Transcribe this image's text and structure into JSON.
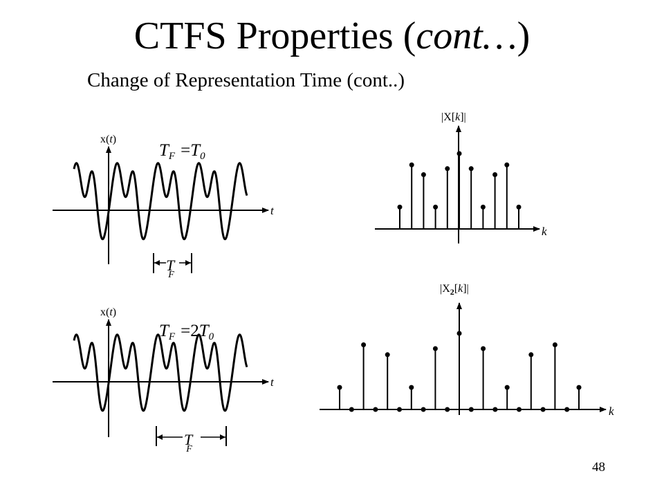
{
  "title": {
    "part1": "CTFS Properties (",
    "emph": "cont…",
    "part2": ")"
  },
  "subtitle": "Change of Representation  Time (cont..)",
  "page_number": "48",
  "time_plots": [
    {
      "ylabel": {
        "x": "x(",
        "t": "t",
        "close": ")"
      },
      "axis_label": "t",
      "equation": {
        "lhs": "T",
        "lhs_sub": "F",
        "eq": "=",
        "coef": "",
        "rhs": "T",
        "rhs_sub": "0"
      },
      "period_label": {
        "main": "T",
        "sub": "F"
      }
    },
    {
      "ylabel": {
        "x": "x(",
        "t": "t",
        "close": ")"
      },
      "axis_label": "t",
      "equation": {
        "lhs": "T",
        "lhs_sub": "F",
        "eq": "=",
        "coef": "2",
        "rhs": "T",
        "rhs_sub": "0"
      },
      "period_label": {
        "main": "T",
        "sub": "F"
      }
    }
  ],
  "spectrum_plots": [
    {
      "ylabel": {
        "open": "|X[",
        "k": "k",
        "close": "]|"
      },
      "axis_label": "k",
      "harmonics": [
        -5,
        -4,
        -3,
        -2,
        -1,
        0,
        1,
        2,
        3,
        4,
        5
      ],
      "magnitudes": [
        0.29,
        0.85,
        0.72,
        0.29,
        0.8,
        1.0,
        0.8,
        0.29,
        0.72,
        0.85,
        0.29
      ]
    },
    {
      "ylabel": {
        "open": "|X",
        "sub": "2",
        "mid": "[",
        "k": "k",
        "close": "]|"
      },
      "axis_label": "k",
      "harmonics": [
        -10,
        -9,
        -8,
        -7,
        -6,
        -5,
        -4,
        -3,
        -2,
        -1,
        0,
        1,
        2,
        3,
        4,
        5,
        6,
        7,
        8,
        9,
        10
      ],
      "magnitudes": [
        0.29,
        0,
        0.85,
        0,
        0.72,
        0,
        0.29,
        0,
        0.8,
        0,
        1.0,
        0,
        0.8,
        0,
        0.29,
        0,
        0.72,
        0,
        0.85,
        0,
        0.29
      ]
    }
  ]
}
